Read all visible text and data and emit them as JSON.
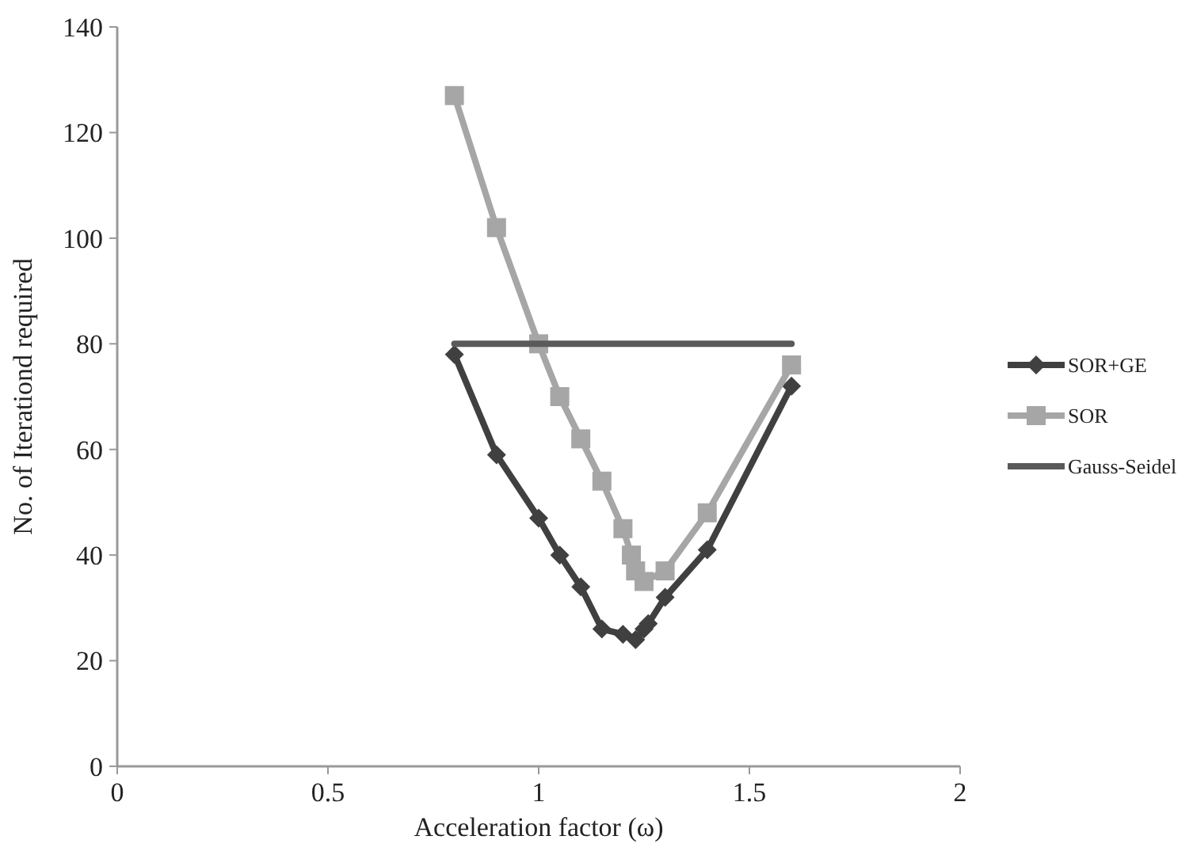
{
  "chart_data": {
    "type": "line",
    "xlabel": "Acceleration factor (ω)",
    "ylabel": "No. of Iterationd required",
    "xlim": [
      0,
      2
    ],
    "xticks": [
      0,
      0.5,
      1,
      1.5,
      2
    ],
    "ylim": [
      0,
      140
    ],
    "yticks": [
      0,
      20,
      40,
      60,
      80,
      100,
      120,
      140
    ],
    "grid": false,
    "legend": "right",
    "line_style": "solid",
    "series": [
      {
        "name": "SOR+GE",
        "color": "#404040",
        "marker": "diamond",
        "x": [
          0.8,
          0.9,
          1.0,
          1.05,
          1.1,
          1.15,
          1.2,
          1.23,
          1.25,
          1.26,
          1.3,
          1.4,
          1.6
        ],
        "values": [
          78,
          59,
          47,
          40,
          34,
          26,
          25,
          24,
          26,
          27,
          32,
          41,
          72
        ]
      },
      {
        "name": "SOR",
        "color": "#a6a6a6",
        "marker": "square",
        "x": [
          0.8,
          0.9,
          1.0,
          1.05,
          1.1,
          1.15,
          1.2,
          1.22,
          1.23,
          1.25,
          1.3,
          1.4,
          1.6
        ],
        "values": [
          127,
          102,
          80,
          70,
          62,
          54,
          45,
          40,
          37,
          35,
          37,
          48,
          76
        ]
      },
      {
        "name": "Gauss-Seidel",
        "color": "#5a5a5a",
        "marker": "none",
        "x": [
          0.8,
          1.6
        ],
        "values": [
          80,
          80
        ]
      }
    ]
  }
}
